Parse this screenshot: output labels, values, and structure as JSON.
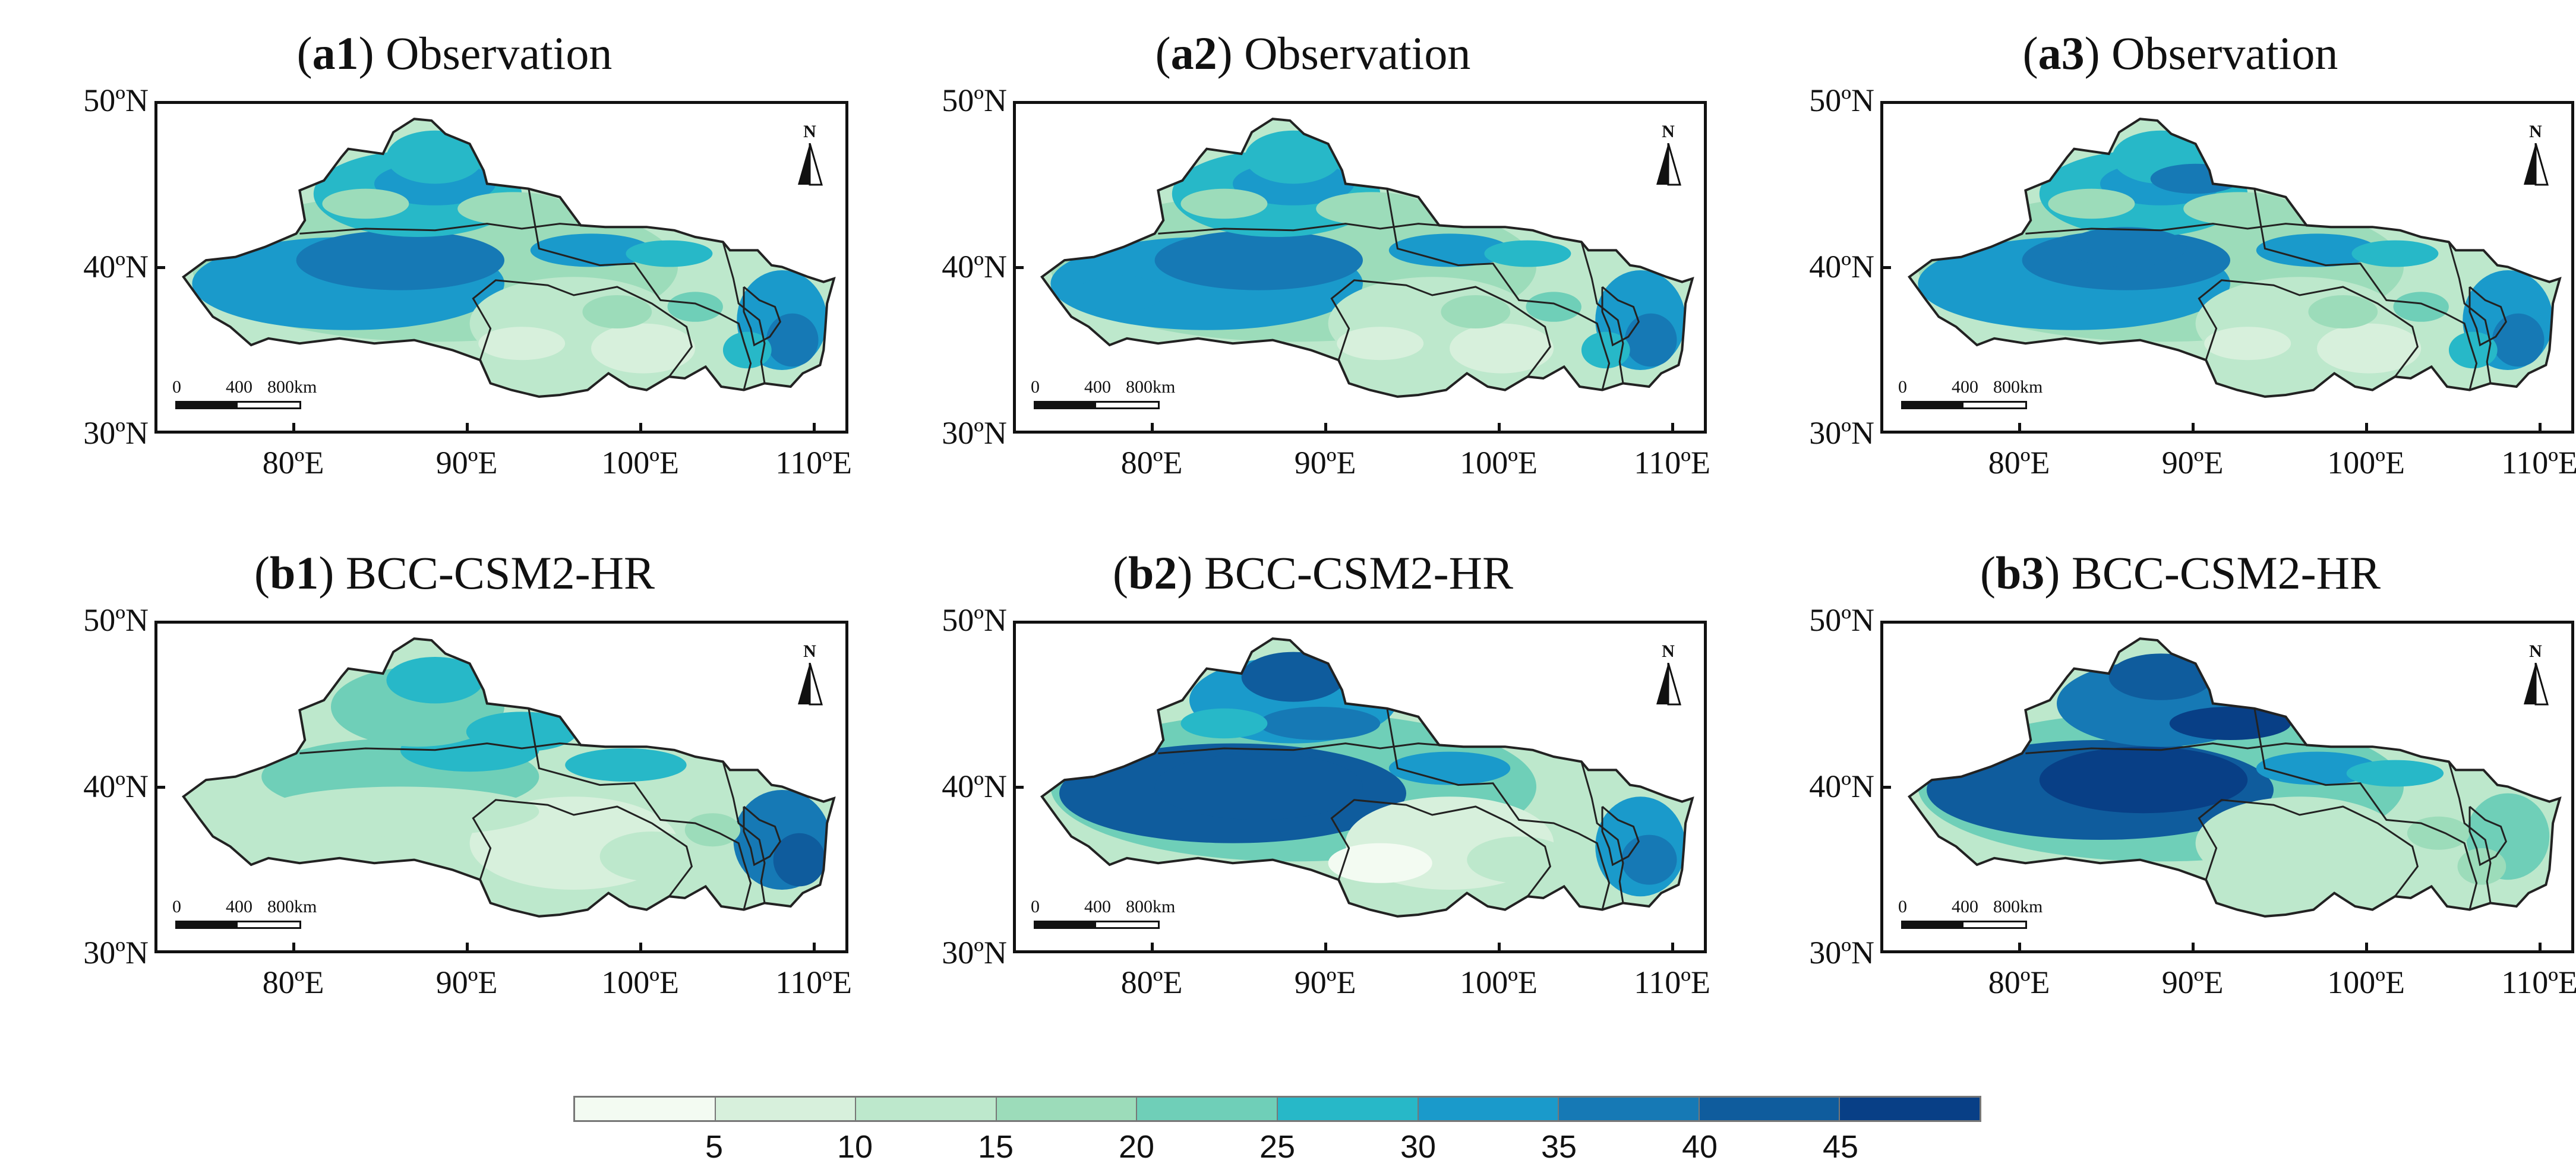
{
  "panels": [
    {
      "label": "a1",
      "rest": "Observation"
    },
    {
      "label": "a2",
      "rest": "Observation"
    },
    {
      "label": "a3",
      "rest": "Observation"
    },
    {
      "label": "b1",
      "rest": "BCC-CSM2-HR"
    },
    {
      "label": "b2",
      "rest": "BCC-CSM2-HR"
    },
    {
      "label": "b3",
      "rest": "BCC-CSM2-HR"
    }
  ],
  "axes": {
    "y_ticks": [
      "50ºN",
      "40ºN",
      "30ºN"
    ],
    "x_ticks": [
      "80ºE",
      "90ºE",
      "100ºE",
      "110ºE"
    ],
    "y_values": [
      50,
      40,
      30
    ],
    "x_values": [
      80,
      90,
      100,
      110
    ],
    "lon_range": [
      72,
      112
    ],
    "lat_range": [
      30,
      50
    ]
  },
  "north_label": "N",
  "scale_bar": {
    "labels": [
      "0",
      "400",
      "800km"
    ]
  },
  "legend": {
    "labels": [
      "5",
      "10",
      "15",
      "20",
      "25",
      "30",
      "35",
      "40",
      "45"
    ],
    "colors": [
      "#f3fbf2",
      "#d7f0dc",
      "#bde8cc",
      "#9cdcba",
      "#6fcfb8",
      "#27b8c8",
      "#1a9acb",
      "#1679b5",
      "#0f5c9d",
      "#083f86"
    ]
  }
}
